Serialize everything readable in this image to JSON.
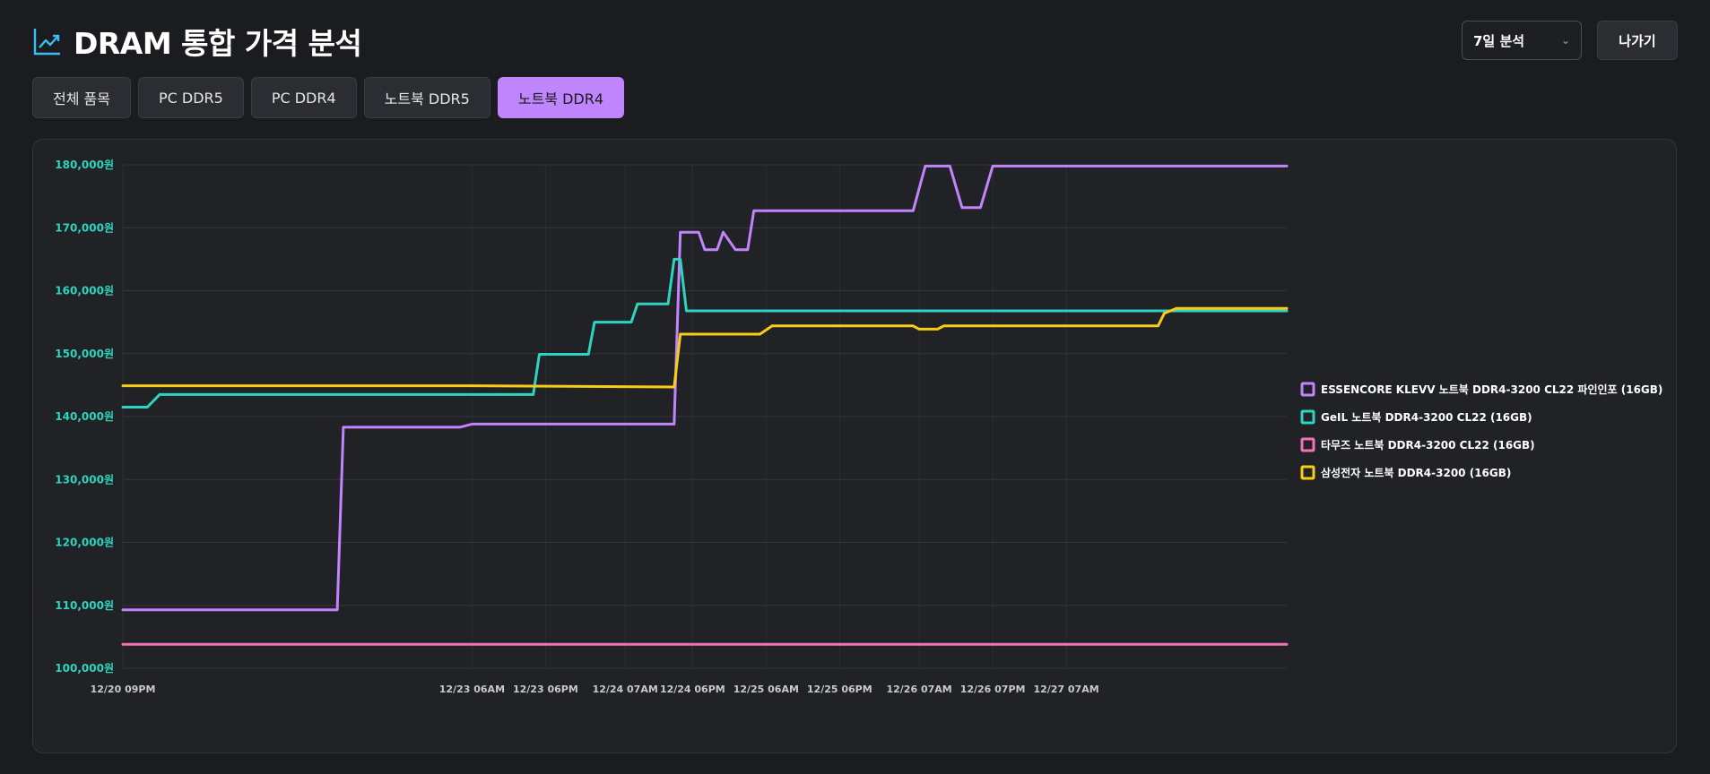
{
  "header": {
    "title": "DRAM 통합 가격 분석",
    "icon": "trending-up-icon"
  },
  "controls": {
    "period_select": "7일 분석",
    "exit_label": "나가기"
  },
  "tabs": [
    {
      "label": "전체 품목",
      "active": false
    },
    {
      "label": "PC DDR5",
      "active": false
    },
    {
      "label": "PC DDR4",
      "active": false
    },
    {
      "label": "노트북 DDR5",
      "active": false
    },
    {
      "label": "노트북 DDR4",
      "active": true
    }
  ],
  "colors": {
    "accent": "#c084fc",
    "tick_y": "#2dd4bf"
  },
  "chart_data": {
    "type": "line",
    "title": "",
    "xlabel": "",
    "ylabel": "",
    "ylim": [
      100000,
      180000
    ],
    "y_ticks": [
      {
        "value": 180000,
        "label": "180,000원"
      },
      {
        "value": 170000,
        "label": "170,000원"
      },
      {
        "value": 160000,
        "label": "160,000원"
      },
      {
        "value": 150000,
        "label": "150,000원"
      },
      {
        "value": 140000,
        "label": "140,000원"
      },
      {
        "value": 130000,
        "label": "130,000원"
      },
      {
        "value": 120000,
        "label": "120,000원"
      },
      {
        "value": 110000,
        "label": "110,000원"
      },
      {
        "value": 100000,
        "label": "100,000원"
      }
    ],
    "xlim": [
      "12/20 09PM",
      "12/28 07PM"
    ],
    "x_tick_labels": [
      "12/20 09PM",
      "12/23 06AM",
      "12/23 06PM",
      "12/24 07AM",
      "12/24 06PM",
      "12/25 06AM",
      "12/25 06PM",
      "12/26 07AM",
      "12/26 07PM",
      "12/27 07AM"
    ],
    "grid": true,
    "legend": "right",
    "series": [
      {
        "name": "ESSENCORE KLEVV 노트북 DDR4-3200 CL22 파인인포 (16GB)",
        "color": "#c084fc",
        "points": [
          [
            "12/20 09PM",
            109300
          ],
          [
            "12/22 08AM",
            109300
          ],
          [
            "12/22 09AM",
            138300
          ],
          [
            "12/23 04AM",
            138300
          ],
          [
            "12/23 06AM",
            138800
          ],
          [
            "12/24 03PM",
            138800
          ],
          [
            "12/24 04PM",
            169300
          ],
          [
            "12/24 07PM",
            169300
          ],
          [
            "12/24 08PM",
            166500
          ],
          [
            "12/24 10PM",
            166500
          ],
          [
            "12/24 11PM",
            169300
          ],
          [
            "12/25 01AM",
            166500
          ],
          [
            "12/25 03AM",
            166500
          ],
          [
            "12/25 04AM",
            172700
          ],
          [
            "12/26 06AM",
            172700
          ],
          [
            "12/26 08AM",
            179800
          ],
          [
            "12/26 12PM",
            179800
          ],
          [
            "12/26 02PM",
            173200
          ],
          [
            "12/26 05PM",
            173200
          ],
          [
            "12/26 07PM",
            179800
          ],
          [
            "12/28 07PM",
            179800
          ]
        ]
      },
      {
        "name": "GeIL 노트북 DDR4-3200 CL22 (16GB)",
        "color": "#2dd4bf",
        "points": [
          [
            "12/20 09PM",
            141500
          ],
          [
            "12/21 01AM",
            141500
          ],
          [
            "12/21 03AM",
            143500
          ],
          [
            "12/23 04PM",
            143500
          ],
          [
            "12/23 05PM",
            149900
          ],
          [
            "12/24 01AM",
            149900
          ],
          [
            "12/24 02AM",
            155000
          ],
          [
            "12/24 08AM",
            155000
          ],
          [
            "12/24 09AM",
            157900
          ],
          [
            "12/24 02PM",
            157900
          ],
          [
            "12/24 03PM",
            165000
          ],
          [
            "12/24 04PM",
            165000
          ],
          [
            "12/24 05PM",
            156800
          ],
          [
            "12/28 07PM",
            156800
          ]
        ]
      },
      {
        "name": "타무즈 노트북 DDR4-3200 CL22 (16GB)",
        "color": "#f472b6",
        "points": [
          [
            "12/20 09PM",
            103800
          ],
          [
            "12/28 07PM",
            103800
          ]
        ]
      },
      {
        "name": "삼성전자 노트북 DDR4-3200 (16GB)",
        "color": "#facc15",
        "points": [
          [
            "12/20 09PM",
            144900
          ],
          [
            "12/23 06AM",
            144900
          ],
          [
            "12/24 03PM",
            144700
          ],
          [
            "12/24 04PM",
            153100
          ],
          [
            "12/25 05AM",
            153100
          ],
          [
            "12/25 07AM",
            154400
          ],
          [
            "12/26 06AM",
            154400
          ],
          [
            "12/26 07AM",
            153900
          ],
          [
            "12/26 10AM",
            153900
          ],
          [
            "12/26 11AM",
            154400
          ],
          [
            "12/27 10PM",
            154400
          ],
          [
            "12/27 11PM",
            156400
          ],
          [
            "12/28 01AM",
            157200
          ],
          [
            "12/28 07PM",
            157200
          ]
        ]
      }
    ]
  }
}
